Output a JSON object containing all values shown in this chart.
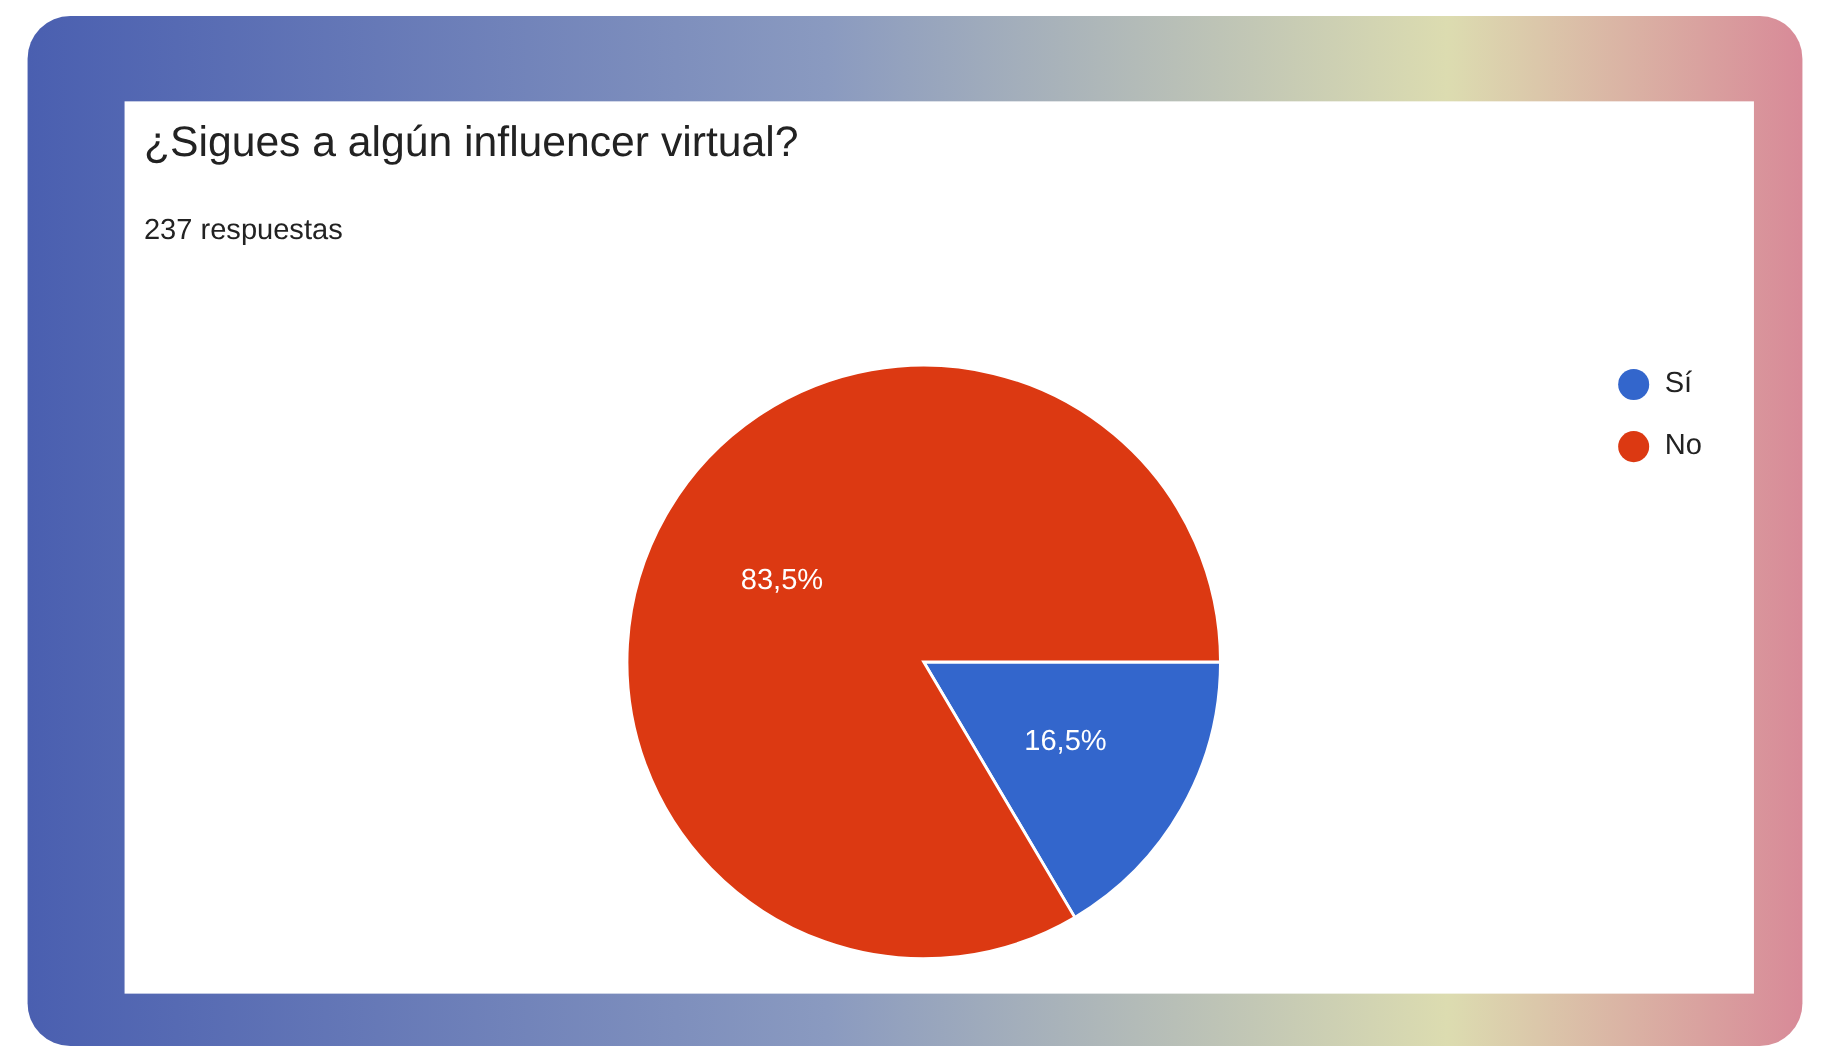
{
  "chart_data": {
    "type": "pie",
    "title": "¿Sigues a algún influencer virtual?",
    "subtitle": "237 respuestas",
    "categories": [
      "Sí",
      "No"
    ],
    "values": [
      16.5,
      83.5
    ],
    "colors": [
      "#3366cc",
      "#dc3912"
    ],
    "value_labels": [
      "16,5%",
      "83,5%"
    ],
    "legend": "right"
  }
}
